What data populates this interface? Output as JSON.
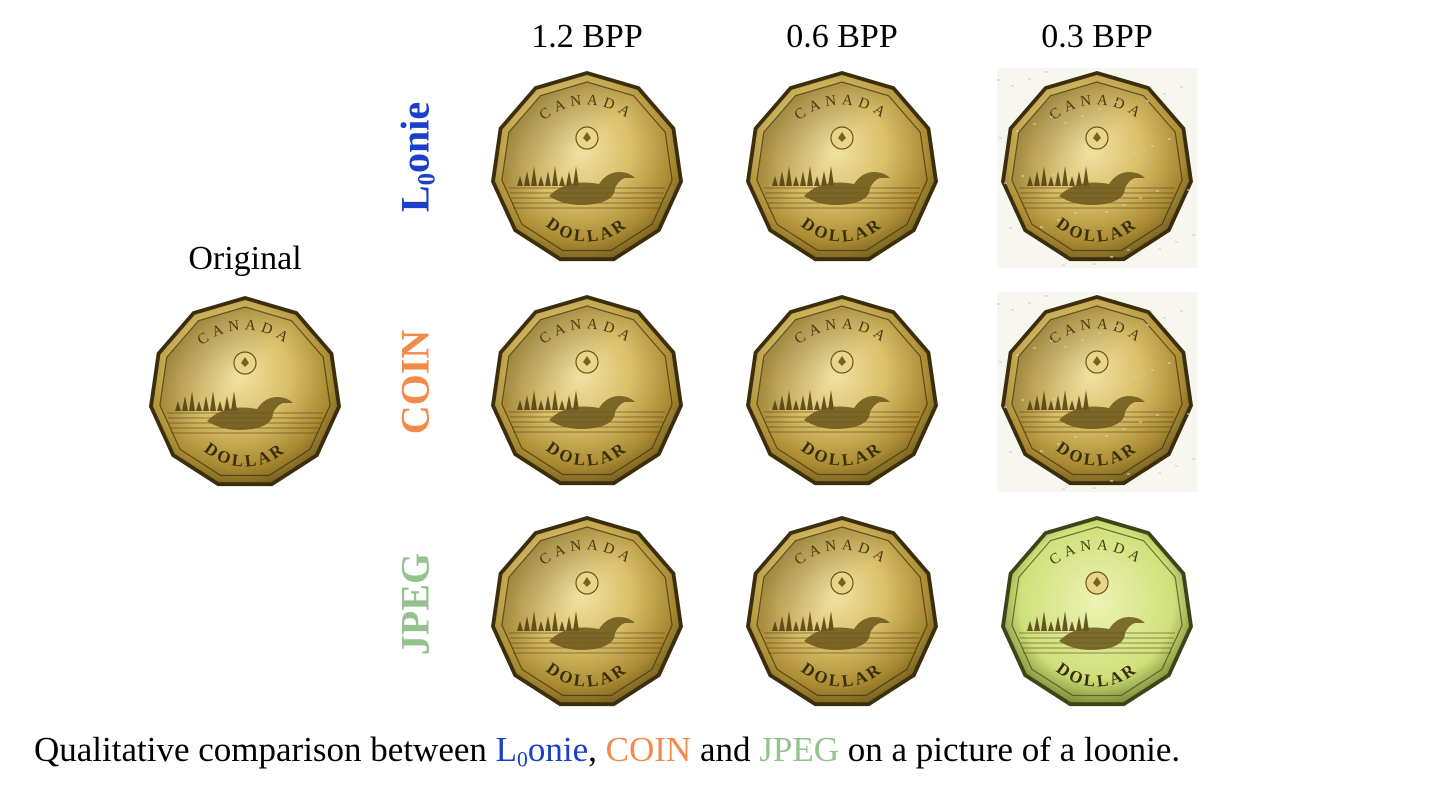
{
  "columns": [
    "1.2 BPP",
    "0.6 BPP",
    "0.3 BPP"
  ],
  "original_label": "Original",
  "rows": [
    {
      "label_main": "L",
      "label_sub": "0",
      "label_rest": "onie",
      "color": "#1a3fc9"
    },
    {
      "label_main": "COIN",
      "color": "#f28a4a"
    },
    {
      "label_main": "JPEG",
      "color": "#95c18f"
    }
  ],
  "coin_text": {
    "top": "CANADA",
    "bottom": "DOLLAR"
  },
  "caption": {
    "part1": "Qualitative  comparison  between ",
    "m1_main": "L",
    "m1_sub": "0",
    "m1_rest": "onie",
    "sep1": ", ",
    "m2": "COIN",
    "sep2": " and ",
    "m3": "JPEG",
    "part2": " on a picture of a loonie.",
    "colors": {
      "m1": "#1a3fc9",
      "m2": "#f28a4a",
      "m3": "#95c18f"
    }
  }
}
